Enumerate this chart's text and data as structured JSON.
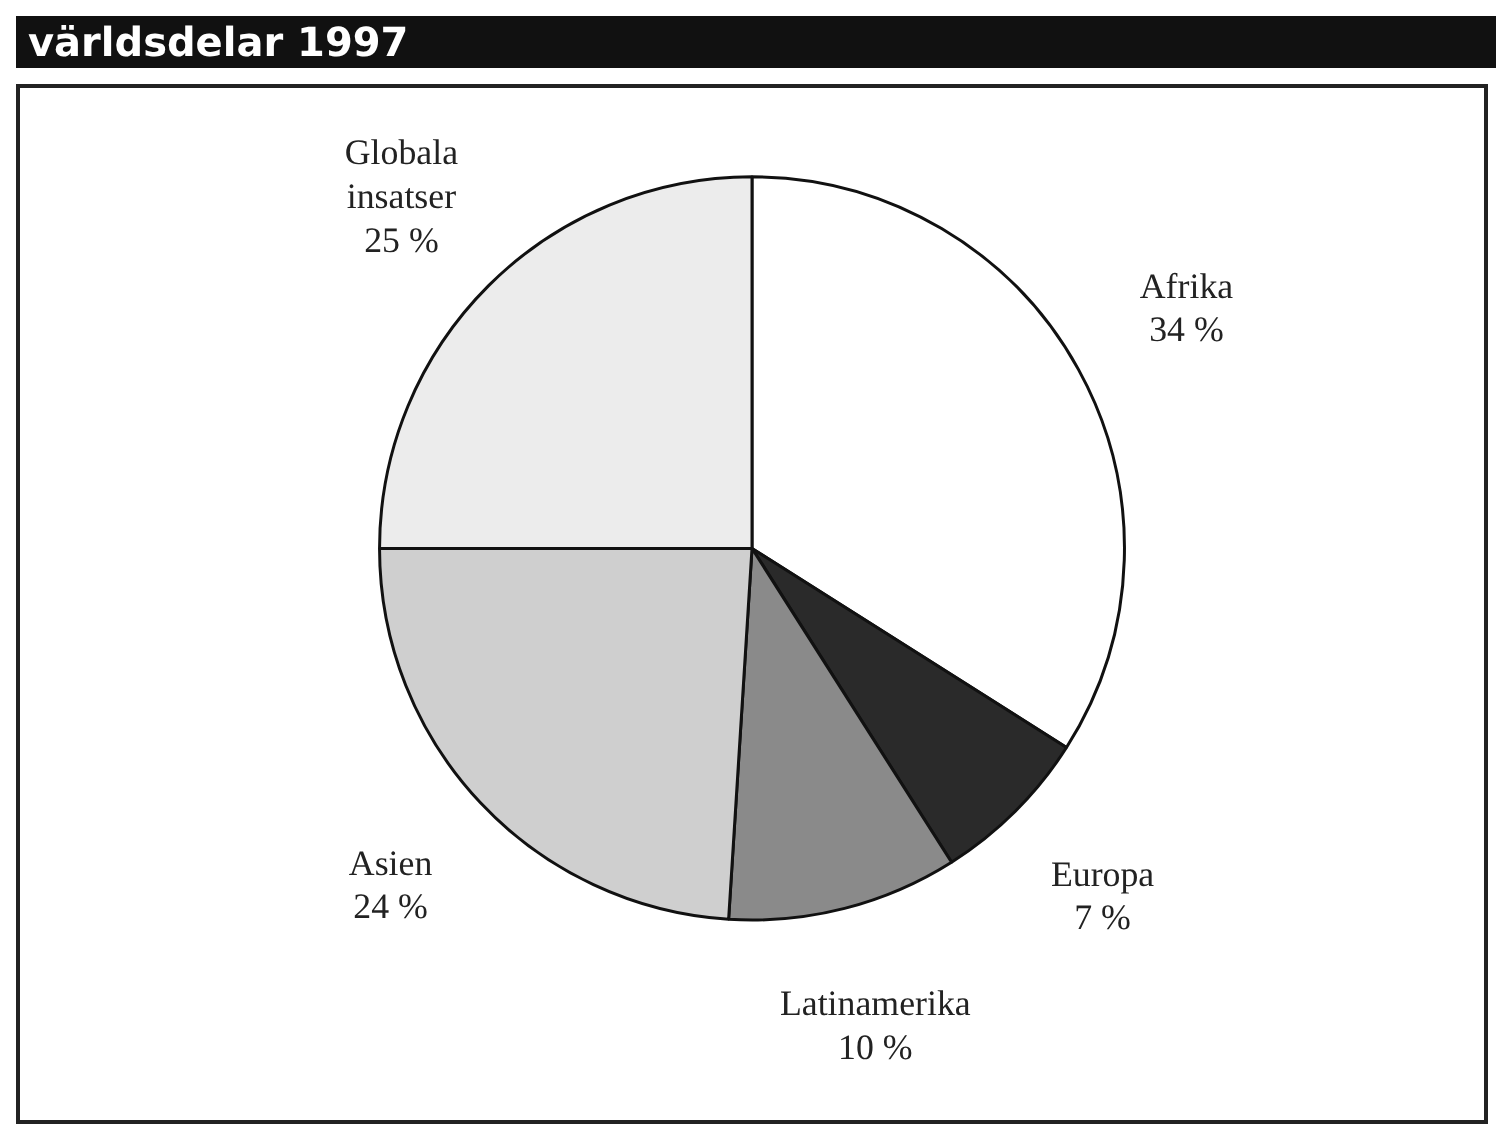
{
  "chart_data": {
    "type": "pie",
    "title": "världsdelar 1997",
    "categories": [
      "Afrika",
      "Europa",
      "Latinamerika",
      "Asien",
      "Globala insatser"
    ],
    "values": [
      34,
      7,
      10,
      24,
      25
    ],
    "value_labels": [
      "34 %",
      "7 %",
      "10 %",
      "24 %",
      "25 %"
    ],
    "colors": [
      "#ffffff",
      "#2a2a2a",
      "#8a8a8a",
      "#cfcfcf",
      "#ececec"
    ],
    "legend": false
  }
}
